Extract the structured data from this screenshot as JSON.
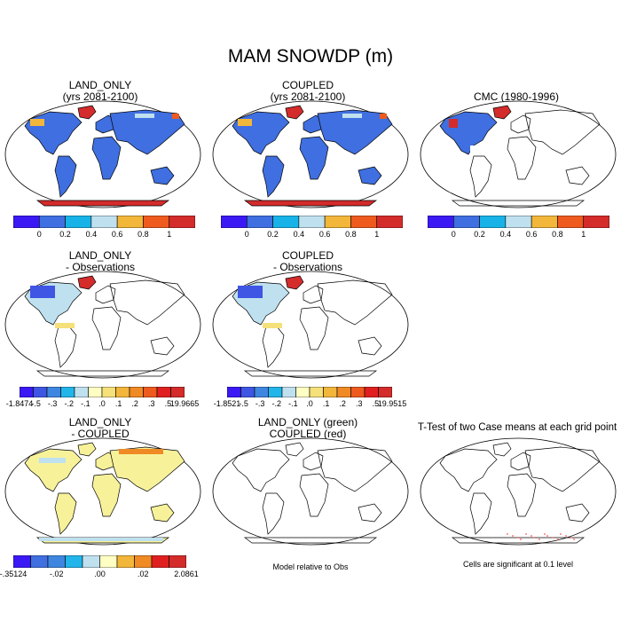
{
  "figure": {
    "title": "MAM SNOWDP (m)"
  },
  "palettes": {
    "abs": [
      "#3b19f5",
      "#3f6fe0",
      "#17b3e8",
      "#bfe0ef",
      "#f2b63a",
      "#ef5a1e",
      "#d42b2b"
    ],
    "diff": [
      "#3b19f5",
      "#3f55e3",
      "#3f86e0",
      "#22b5ea",
      "#bfe0ef",
      "#ffffc4",
      "#f5e07a",
      "#f2b63a",
      "#f08a24",
      "#ef5a1e",
      "#e02020",
      "#d42b2b"
    ],
    "diff2": [
      "#3b19f5",
      "#3f6fe0",
      "#3f86e0",
      "#22b5ea",
      "#bfe0ef",
      "#ffffc4",
      "#f2b63a",
      "#f08a24",
      "#e02020",
      "#d42b2b"
    ]
  },
  "colors": {
    "land_yellow": "#f7f29a",
    "land_blue": "#3f6fe0",
    "antarctic_red": "#d42b2b",
    "light_blue": "#bfe0ef",
    "sig_red": "#ff5a5a"
  },
  "panels": {
    "p1": {
      "line1": "LAND_ONLY",
      "line2": "(yrs 2081-2100)",
      "labels": [
        "0",
        "0.2",
        "0.4",
        "0.6",
        "0.8",
        "1"
      ]
    },
    "p2": {
      "line1": "COUPLED",
      "line2": "(yrs 2081-2100)",
      "labels": [
        "0",
        "0.2",
        "0.4",
        "0.6",
        "0.8",
        "1"
      ]
    },
    "p3": {
      "line1": "CMC (1980-1996)",
      "labels": [
        "0",
        "0.2",
        "0.4",
        "0.6",
        "0.8",
        "1"
      ]
    },
    "p4": {
      "line1": "LAND_ONLY",
      "line2": "- Observations",
      "labels": [
        "-1.8474",
        "-.5",
        "-.3",
        "-.2",
        "-.1",
        ".0",
        ".1",
        ".2",
        ".3",
        ".5",
        "19.9665"
      ]
    },
    "p5": {
      "line1": "COUPLED",
      "line2": "- Observations",
      "labels": [
        "-1.8521",
        "-.5",
        "-.3",
        "-.2",
        "-.1",
        ".0",
        ".1",
        ".2",
        ".3",
        ".5",
        "19.9515"
      ]
    },
    "p7": {
      "line1": "LAND_ONLY",
      "line2": "- COUPLED",
      "labels": [
        "-.35124",
        "-.02",
        ".00",
        ".02",
        "2.0861"
      ]
    },
    "p8": {
      "line1": "LAND_ONLY (green)",
      "line2": "COUPLED (red)",
      "note": "Model relative to Obs"
    },
    "p9": {
      "line1": "T-Test of two Case means at each grid point",
      "note": "Cells are significant at 0.1 level"
    }
  }
}
